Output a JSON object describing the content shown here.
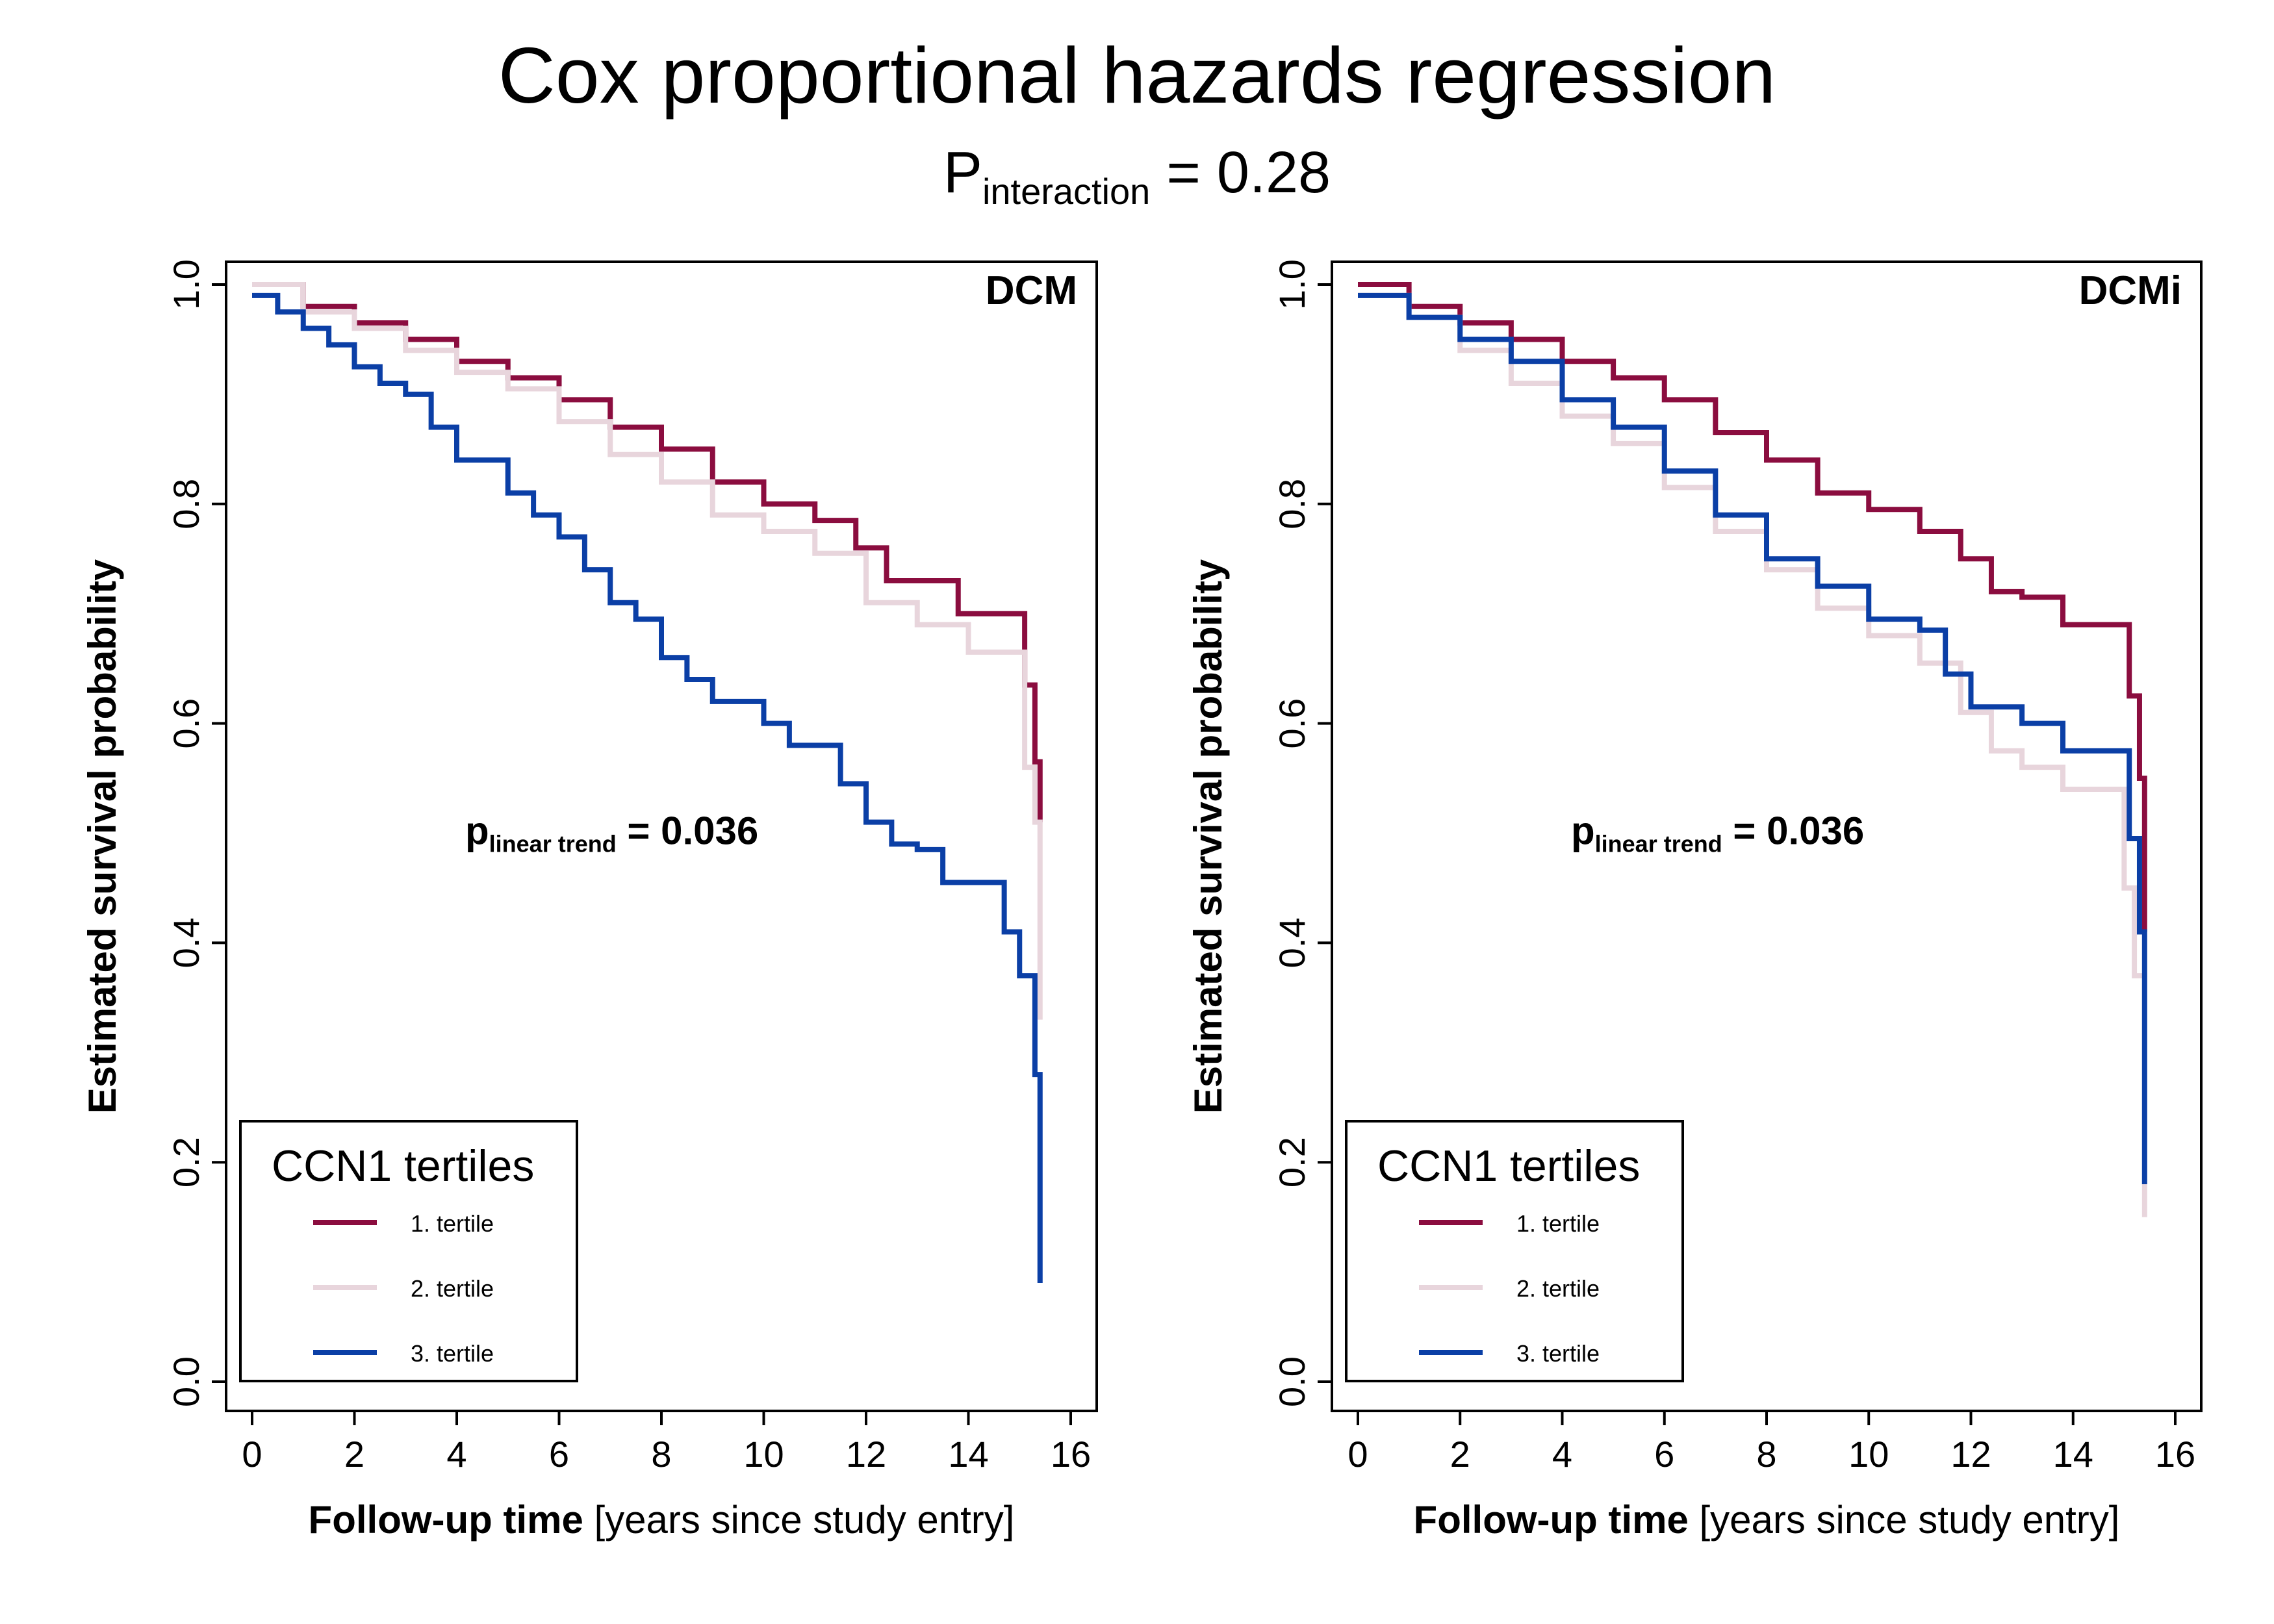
{
  "figure": {
    "title": "Cox proportional hazards regression",
    "subtitle_main": "P",
    "subtitle_sub": "interaction",
    "subtitle_value": " = 0.28"
  },
  "colors": {
    "tertile1": "#8B0D3F",
    "tertile2": "#E8D5DC",
    "tertile3": "#0B3FA6"
  },
  "chart_data": [
    {
      "type": "line",
      "panel_label": "DCM",
      "xlabel_bold": "Follow-up time",
      "xlabel_rest": " [years since study entry]",
      "ylabel": "Estimated survival probability",
      "xlim": [
        0,
        16
      ],
      "ylim": [
        0,
        1
      ],
      "xticks": [
        "0",
        "2",
        "4",
        "6",
        "8",
        "10",
        "12",
        "14",
        "16"
      ],
      "yticks": [
        "0.0",
        "0.2",
        "0.4",
        "0.6",
        "0.8",
        "1.0"
      ],
      "annotation": {
        "main": "p",
        "sub": "linear trend",
        "value": " = 0.036"
      },
      "legend": {
        "title": "CCN1 tertiles",
        "entries": [
          "1. tertile",
          "2. tertile",
          "3. tertile"
        ],
        "placement": "bottom-left"
      },
      "series": [
        {
          "name": "1. tertile",
          "x": [
            0,
            1,
            2,
            3,
            4,
            5,
            6,
            7,
            8,
            9,
            10,
            11,
            11.8,
            12.4,
            13,
            13.8,
            14.8,
            15.1,
            15.3,
            15.4
          ],
          "y": [
            1.0,
            0.98,
            0.965,
            0.95,
            0.93,
            0.915,
            0.895,
            0.87,
            0.85,
            0.82,
            0.8,
            0.785,
            0.76,
            0.73,
            0.73,
            0.7,
            0.7,
            0.635,
            0.565,
            0.51
          ]
        },
        {
          "name": "2. tertile",
          "x": [
            0,
            1,
            2,
            3,
            4,
            5,
            6,
            7,
            8,
            9,
            10,
            11,
            12,
            13,
            14,
            14.8,
            15.1,
            15.3,
            15.4
          ],
          "y": [
            1.0,
            0.975,
            0.96,
            0.94,
            0.92,
            0.905,
            0.875,
            0.845,
            0.82,
            0.79,
            0.775,
            0.755,
            0.71,
            0.69,
            0.665,
            0.665,
            0.56,
            0.51,
            0.33
          ]
        },
        {
          "name": "3. tertile",
          "x": [
            0,
            0.5,
            1,
            1.5,
            2,
            2.5,
            3,
            3.5,
            4,
            5,
            5.5,
            6,
            6.5,
            7,
            7.5,
            8,
            8.5,
            9,
            10,
            10.5,
            11,
            11.5,
            12,
            12.5,
            13,
            13.5,
            14.5,
            14.7,
            15.0,
            15.3,
            15.4
          ],
          "y": [
            0.99,
            0.975,
            0.96,
            0.945,
            0.925,
            0.91,
            0.9,
            0.87,
            0.84,
            0.81,
            0.79,
            0.77,
            0.74,
            0.71,
            0.695,
            0.66,
            0.64,
            0.62,
            0.6,
            0.58,
            0.58,
            0.545,
            0.51,
            0.49,
            0.485,
            0.455,
            0.455,
            0.41,
            0.37,
            0.28,
            0.09
          ]
        }
      ]
    },
    {
      "type": "line",
      "panel_label": "DCMi",
      "xlabel_bold": "Follow-up time",
      "xlabel_rest": " [years since study entry]",
      "ylabel": "Estimated survival probability",
      "xlim": [
        0,
        16
      ],
      "ylim": [
        0,
        1
      ],
      "xticks": [
        "0",
        "2",
        "4",
        "6",
        "8",
        "10",
        "12",
        "14",
        "16"
      ],
      "yticks": [
        "0.0",
        "0.2",
        "0.4",
        "0.6",
        "0.8",
        "1.0"
      ],
      "annotation": {
        "main": "p",
        "sub": "linear trend",
        "value": " = 0.036"
      },
      "legend": {
        "title": "CCN1 tertiles",
        "entries": [
          "1. tertile",
          "2. tertile",
          "3. tertile"
        ],
        "placement": "bottom-left"
      },
      "series": [
        {
          "name": "1. tertile",
          "x": [
            0,
            1,
            2,
            3,
            4,
            5,
            6,
            7,
            8,
            9,
            10,
            11,
            11.8,
            12.4,
            13,
            13.8,
            14.8,
            15.1,
            15.3,
            15.4
          ],
          "y": [
            1.0,
            0.98,
            0.965,
            0.95,
            0.93,
            0.915,
            0.895,
            0.865,
            0.84,
            0.81,
            0.795,
            0.775,
            0.75,
            0.72,
            0.715,
            0.69,
            0.69,
            0.625,
            0.55,
            0.41
          ]
        },
        {
          "name": "2. tertile",
          "x": [
            0,
            1,
            2,
            3,
            4,
            5,
            6,
            7,
            8,
            9,
            10,
            11,
            11.8,
            12.4,
            13,
            13.8,
            14.8,
            15.0,
            15.2,
            15.4
          ],
          "y": [
            0.99,
            0.97,
            0.94,
            0.91,
            0.88,
            0.855,
            0.815,
            0.775,
            0.74,
            0.705,
            0.68,
            0.655,
            0.61,
            0.575,
            0.56,
            0.54,
            0.54,
            0.45,
            0.37,
            0.15
          ]
        },
        {
          "name": "3. tertile",
          "x": [
            0,
            1,
            2,
            3,
            4,
            5,
            6,
            7,
            8,
            9,
            10,
            11,
            11.5,
            12,
            13,
            13.8,
            14.4,
            14.8,
            15.1,
            15.3,
            15.4
          ],
          "y": [
            0.99,
            0.97,
            0.95,
            0.93,
            0.895,
            0.87,
            0.83,
            0.79,
            0.75,
            0.725,
            0.695,
            0.685,
            0.645,
            0.615,
            0.6,
            0.575,
            0.575,
            0.575,
            0.495,
            0.41,
            0.18
          ]
        }
      ]
    }
  ]
}
